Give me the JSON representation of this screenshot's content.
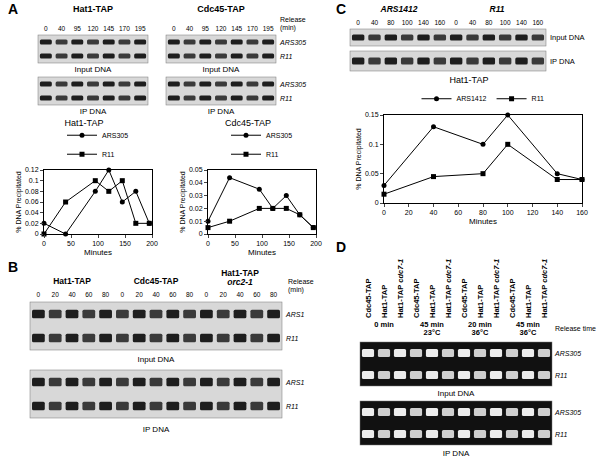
{
  "chart_data": [
    {
      "type": "line",
      "title": "Hat1-TAP",
      "x": [
        0,
        40,
        95,
        120,
        145,
        170,
        195
      ],
      "series": [
        {
          "name": "ARS305",
          "color": "#000000",
          "marker": "circle",
          "values": [
            0.02,
            0.0,
            0.08,
            0.12,
            0.06,
            0.08,
            0.02
          ]
        },
        {
          "name": "R11",
          "color": "#000000",
          "marker": "square",
          "values": [
            0.0,
            0.06,
            0.1,
            0.08,
            0.1,
            0.02,
            0.02
          ]
        }
      ],
      "xlim": [
        0,
        200
      ],
      "xticks": [
        0,
        50,
        100,
        150,
        200
      ],
      "ylim": [
        0,
        0.12
      ],
      "yticks": [
        0,
        0.02,
        0.04,
        0.06,
        0.08,
        0.1,
        0.12
      ],
      "x_label": "Minutes",
      "y_label": "% DNA Precipitated",
      "legend": "top",
      "grid": false
    },
    {
      "type": "line",
      "title": "Cdc45-TAP",
      "x": [
        0,
        40,
        95,
        120,
        145,
        170,
        195
      ],
      "series": [
        {
          "name": "ARS305",
          "color": "#000000",
          "marker": "circle",
          "values": [
            0.01,
            0.044,
            0.035,
            0.02,
            0.03,
            0.015,
            0.005
          ]
        },
        {
          "name": "R11",
          "color": "#000000",
          "marker": "square",
          "values": [
            0.005,
            0.01,
            0.02,
            0.02,
            0.02,
            0.015,
            0.005
          ]
        }
      ],
      "xlim": [
        0,
        200
      ],
      "xticks": [
        0,
        50,
        100,
        150,
        200
      ],
      "ylim": [
        0,
        0.05
      ],
      "yticks": [
        0,
        0.01,
        0.02,
        0.03,
        0.04,
        0.05
      ],
      "x_label": "Minutes",
      "y_label": "% DNA Precipitated",
      "legend": "top",
      "grid": false
    },
    {
      "type": "line",
      "title": "Hat1-TAP",
      "x": [
        0,
        40,
        80,
        100,
        140,
        160
      ],
      "series": [
        {
          "name": "ARS1412",
          "color": "#000000",
          "marker": "circle",
          "values": [
            0.03,
            0.13,
            0.1,
            0.15,
            0.05,
            0.04
          ]
        },
        {
          "name": "R11",
          "color": "#000000",
          "marker": "square",
          "values": [
            0.015,
            0.045,
            0.05,
            0.1,
            0.04,
            0.04
          ]
        }
      ],
      "xlim": [
        0,
        160
      ],
      "xticks": [
        0,
        20,
        40,
        60,
        80,
        100,
        120,
        140,
        160
      ],
      "ylim": [
        0,
        0.15
      ],
      "yticks": [
        0,
        0.05,
        0.1,
        0.15
      ],
      "x_label": "Minutes",
      "y_label": "% DNA Precipitated",
      "legend": "top",
      "grid": false
    }
  ],
  "panels": {
    "A": {
      "letter": "A",
      "strains": [
        "Hat1-TAP",
        "Cdc45-TAP"
      ],
      "release_label": [
        "Release",
        "(min)"
      ],
      "times": [
        "0",
        "40",
        "95",
        "120",
        "145",
        "170",
        "195"
      ],
      "loci": [
        "ARS305",
        "R11"
      ],
      "rows": [
        "Input DNA",
        "IP DNA"
      ]
    },
    "B": {
      "letter": "B",
      "strains": [
        [
          "Hat1-TAP"
        ],
        [
          "Cdc45-TAP"
        ],
        [
          "Hat1-TAP",
          "orc2-1"
        ]
      ],
      "release_label": [
        "Release",
        "(min)"
      ],
      "times": [
        "0",
        "20",
        "40",
        "60",
        "80"
      ],
      "loci": [
        "ARS1",
        "R11"
      ],
      "rows": [
        "Input DNA",
        "IP DNA"
      ]
    },
    "C": {
      "letter": "C",
      "groups": [
        "ARS1412",
        "R11"
      ],
      "times": [
        "0",
        "40",
        "80",
        "100",
        "140",
        "160"
      ],
      "rows": [
        "Input DNA",
        "IP DNA"
      ]
    },
    "D": {
      "letter": "D",
      "lanes": [
        [
          "Cdc45-TAP"
        ],
        [
          "Hat1-TAP"
        ],
        [
          "Hat1-TAP",
          "cdc7-1"
        ]
      ],
      "conditions": [
        [
          "0 min"
        ],
        [
          "45 min",
          "23°C"
        ],
        [
          "20 min",
          "36°C"
        ],
        [
          "45 min",
          "36°C"
        ]
      ],
      "release_label": "Release time",
      "loci": [
        "ARS305",
        "R11"
      ],
      "rows": [
        "Input DNA",
        "IP DNA"
      ]
    }
  }
}
